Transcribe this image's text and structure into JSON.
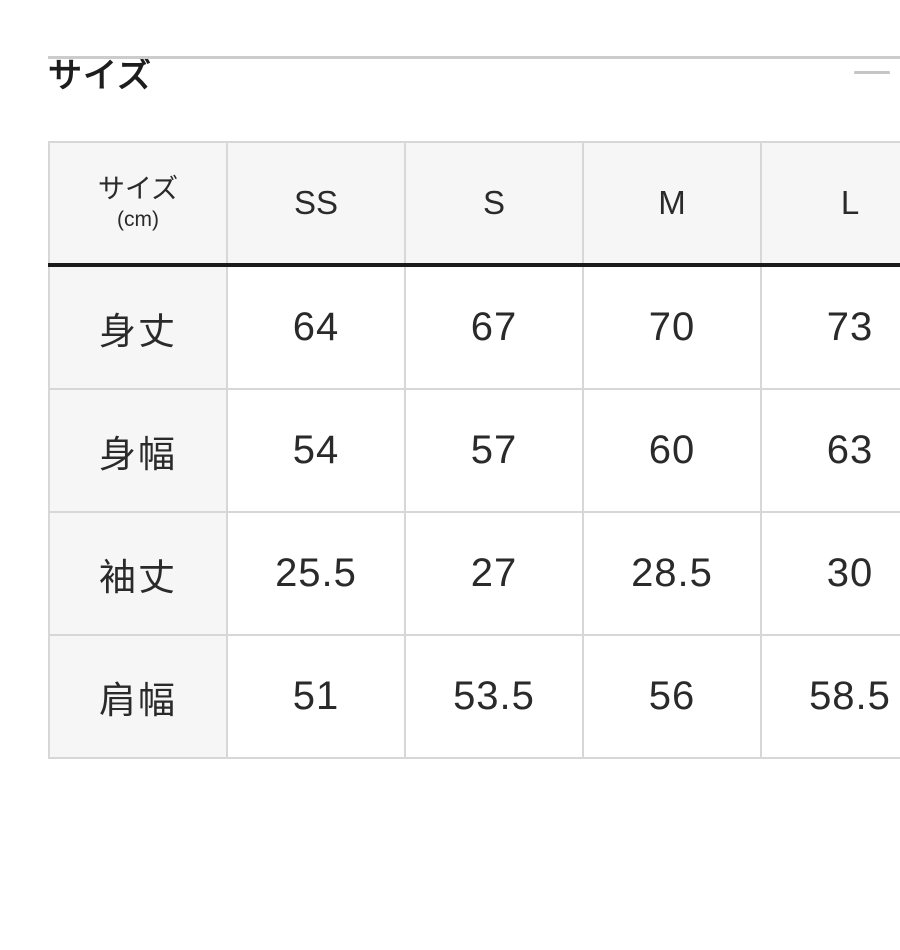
{
  "section": {
    "title": "サイズ",
    "state_icon": "minus-collapse"
  },
  "table": {
    "corner_header": {
      "line1": "サイズ",
      "line2": "(cm)"
    },
    "columns": [
      "SS",
      "S",
      "M",
      "L"
    ],
    "rows": [
      {
        "label": "身丈",
        "values": [
          "64",
          "67",
          "70",
          "73"
        ]
      },
      {
        "label": "身幅",
        "values": [
          "54",
          "57",
          "60",
          "63"
        ]
      },
      {
        "label": "袖丈",
        "values": [
          "25.5",
          "27",
          "28.5",
          "30"
        ]
      },
      {
        "label": "肩幅",
        "values": [
          "51",
          "53.5",
          "56",
          "58.5"
        ]
      }
    ]
  },
  "colors": {
    "header_cell_bg": "#f6f6f6",
    "cell_border": "#d7d7d7",
    "header_underline": "#1b1b1b",
    "divider": "#cccccc",
    "text": "#2a2a2a"
  }
}
